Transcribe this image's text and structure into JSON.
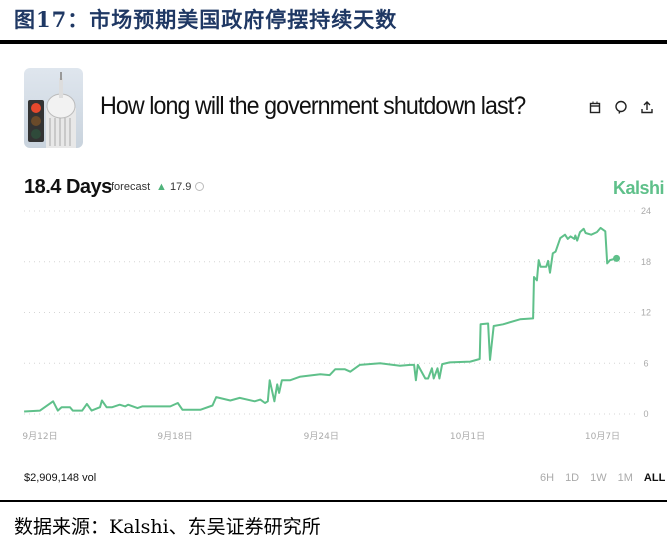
{
  "figure_title": "图17：市场预期美国政府停摆持续天数",
  "market": {
    "question": "How long will the government shutdown last?",
    "value": "18.4 Days",
    "forecast_label": "forecast",
    "delta": "17.9",
    "brand": "Kalshi",
    "volume": "$2,909,148 vol",
    "icons": [
      "calendar-icon",
      "comment-icon",
      "share-icon"
    ],
    "ranges": [
      "6H",
      "1D",
      "1W",
      "1M",
      "ALL"
    ],
    "active_range": "ALL"
  },
  "source": "数据来源：Kalshi、东吴证券研究所",
  "chart_data": {
    "type": "line",
    "color": "#5fc08a",
    "ylim": [
      0,
      24
    ],
    "yticks": [
      "0",
      "6",
      "12",
      "18",
      "24"
    ],
    "xticks": [
      {
        "label": "9月12日",
        "date": "09-12 00:00"
      },
      {
        "label": "9月18日",
        "date": "09-18 00:00"
      },
      {
        "label": "9月24日",
        "date": "09-24 12:00"
      },
      {
        "label": "10月1日",
        "date": "10-01 00:00"
      },
      {
        "label": "10月7日",
        "date": "10-07 00:00"
      }
    ],
    "grid": true,
    "points": [
      [
        "09-11 07:00",
        0.3
      ],
      [
        "09-12 00:00",
        0.4
      ],
      [
        "09-12 14:00",
        1.5
      ],
      [
        "09-12 19:00",
        0.4
      ],
      [
        "09-12 23:00",
        0.8
      ],
      [
        "09-13 08:00",
        0.8
      ],
      [
        "09-13 11:00",
        0.4
      ],
      [
        "09-13 21:00",
        0.4
      ],
      [
        "09-14 02:00",
        1.2
      ],
      [
        "09-14 07:00",
        0.4
      ],
      [
        "09-14 16:00",
        0.8
      ],
      [
        "09-14 18:00",
        1.6
      ],
      [
        "09-14 23:00",
        0.8
      ],
      [
        "09-15 05:00",
        0.8
      ],
      [
        "09-15 13:00",
        1.1
      ],
      [
        "09-15 19:00",
        0.9
      ],
      [
        "09-15 22:00",
        1.1
      ],
      [
        "09-16 08:00",
        0.7
      ],
      [
        "09-16 13:00",
        0.9
      ],
      [
        "09-17 19:00",
        0.9
      ],
      [
        "09-18 03:00",
        1.3
      ],
      [
        "09-18 08:00",
        0.5
      ],
      [
        "09-19 03:00",
        0.5
      ],
      [
        "09-19 16:00",
        1.0
      ],
      [
        "09-19 20:00",
        2.0
      ],
      [
        "09-20 11:00",
        1.6
      ],
      [
        "09-20 21:00",
        1.9
      ],
      [
        "09-21 13:00",
        1.5
      ],
      [
        "09-21 19:00",
        1.7
      ],
      [
        "09-22 00:00",
        1.3
      ],
      [
        "09-22 03:00",
        1.5
      ],
      [
        "09-22 05:00",
        4.0
      ],
      [
        "09-22 10:00",
        1.5
      ],
      [
        "09-22 13:00",
        3.5
      ],
      [
        "09-22 15:00",
        2.5
      ],
      [
        "09-22 18:00",
        4.0
      ],
      [
        "09-23 03:00",
        4.0
      ],
      [
        "09-23 13:00",
        4.4
      ],
      [
        "09-24 11:00",
        4.7
      ],
      [
        "09-24 21:00",
        4.6
      ],
      [
        "09-25 03:00",
        5.3
      ],
      [
        "09-25 13:00",
        5.3
      ],
      [
        "09-25 19:00",
        5.0
      ],
      [
        "09-26 05:00",
        5.8
      ],
      [
        "09-27 03:00",
        6.0
      ],
      [
        "09-28 00:00",
        5.7
      ],
      [
        "09-28 11:00",
        5.8
      ],
      [
        "09-28 15:00",
        5.8
      ],
      [
        "09-28 17:00",
        4.0
      ],
      [
        "09-28 19:00",
        5.8
      ],
      [
        "09-29 03:00",
        4.2
      ],
      [
        "09-29 06:00",
        4.2
      ],
      [
        "09-29 10:00",
        5.4
      ],
      [
        "09-29 12:00",
        4.2
      ],
      [
        "09-29 16:00",
        5.4
      ],
      [
        "09-29 18:00",
        4.2
      ],
      [
        "09-29 21:00",
        5.9
      ],
      [
        "09-30 05:00",
        6.1
      ],
      [
        "10-01 03:00",
        6.2
      ],
      [
        "10-01 13:00",
        6.5
      ],
      [
        "10-01 14:00",
        10.6
      ],
      [
        "10-01 22:00",
        10.7
      ],
      [
        "10-02 00:00",
        6.4
      ],
      [
        "10-02 04:00",
        10.4
      ],
      [
        "10-02 14:00",
        10.6
      ],
      [
        "10-03 08:00",
        11.2
      ],
      [
        "10-03 22:00",
        11.3
      ],
      [
        "10-03 23:00",
        16.2
      ],
      [
        "10-04 02:00",
        15.8
      ],
      [
        "10-04 04:00",
        18.2
      ],
      [
        "10-04 06:00",
        17.4
      ],
      [
        "10-04 12:00",
        17.4
      ],
      [
        "10-04 14:00",
        18.1
      ],
      [
        "10-04 16:00",
        16.7
      ],
      [
        "10-04 19:00",
        19.0
      ],
      [
        "10-04 22:00",
        19.2
      ],
      [
        "10-05 03:00",
        20.8
      ],
      [
        "10-05 08:00",
        21.2
      ],
      [
        "10-05 11:00",
        20.7
      ],
      [
        "10-05 14:00",
        21.0
      ],
      [
        "10-05 18:00",
        20.7
      ],
      [
        "10-05 19:00",
        21.1
      ],
      [
        "10-05 21:00",
        20.5
      ],
      [
        "10-06 00:00",
        21.5
      ],
      [
        "10-06 04:00",
        21.9
      ],
      [
        "10-06 06:00",
        21.4
      ],
      [
        "10-06 12:00",
        21.2
      ],
      [
        "10-06 18:00",
        21.5
      ],
      [
        "10-06 22:00",
        22.0
      ],
      [
        "10-07 03:00",
        21.6
      ],
      [
        "10-07 05:00",
        17.8
      ],
      [
        "10-07 08:00",
        18.2
      ],
      [
        "10-07 15:00",
        18.4
      ]
    ]
  }
}
